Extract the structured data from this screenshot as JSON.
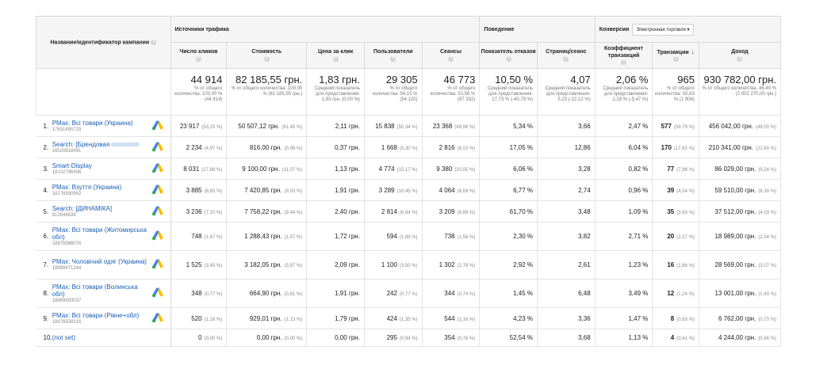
{
  "header": {
    "campaign_col": "Название/идентификатор кампании",
    "group_traffic": "Источники трафика",
    "group_behavior": "Поведение",
    "group_conversions": "Конверсии",
    "conversion_select": "Электронная торговля",
    "columns": [
      "Число кликов",
      "Стоимость",
      "Цена за клик",
      "Пользователи",
      "Сеансы",
      "Показатель отказов",
      "Страниц/сеанс",
      "Коэффициент транзакций",
      "Транзакции",
      "Доход"
    ]
  },
  "totals": [
    {
      "value": "44 914",
      "sub": "% от общего количества: 100,00 % (44 914)"
    },
    {
      "value": "82 185,55 грн.",
      "sub": "% от общего количества: 100,00 % (82 185,55 грн.)"
    },
    {
      "value": "1,83 грн.",
      "sub": "Средний показатель для представления: 1,83 грн. (0,00 %)"
    },
    {
      "value": "29 305",
      "sub": "% от общего количества: 54,15 % (54 120)"
    },
    {
      "value": "46 773",
      "sub": "% от общего количества: 53,56 % (87 332)"
    },
    {
      "value": "10,50 %",
      "sub": "Средний показатель для представления: 17,73 % (-40,79 %)"
    },
    {
      "value": "4,07",
      "sub": "Средний показатель для представления: 5,23 (-22,12 %)"
    },
    {
      "value": "2,06 %",
      "sub": "Средний показатель для представления: 2,18 % (-5,47 %)"
    },
    {
      "value": "965",
      "sub": "% от общего количества: 50,63 % (1 906)"
    },
    {
      "value": "930 782,00 грн.",
      "sub": "% от общего количества: 46,49 % (2 002 270,00 грн.)"
    }
  ],
  "rows": [
    {
      "num": "1.",
      "name": "PMax: Всі товари (Украина)",
      "id": "17631455729",
      "clicks": "23 917",
      "clicks_pct": "(53,25 %)",
      "cost": "50 507,12 грн.",
      "cost_pct": "(61,45 %)",
      "cpc": "2,11 грн.",
      "users": "15 838",
      "users_pct": "(50,34 %)",
      "sessions": "23 368",
      "sessions_pct": "(49,96 %)",
      "bounce": "5,34 %",
      "pages": "3,66",
      "conv_rate": "2,47 %",
      "trans": "577",
      "trans_pct": "(59,79 %)",
      "revenue": "456 042,00 грн.",
      "revenue_pct": "(49,00 %)"
    },
    {
      "num": "2.",
      "name": "Search: [Брендовая",
      "id": "16520818491",
      "clicks": "2 234",
      "clicks_pct": "(4,97 %)",
      "cost": "816,00 грн.",
      "cost_pct": "(0,99 %)",
      "cpc": "0,37 грн.",
      "users": "1 668",
      "users_pct": "(5,30 %)",
      "sessions": "2 816",
      "sessions_pct": "(6,02 %)",
      "bounce": "17,05 %",
      "pages": "12,86",
      "conv_rate": "6,04 %",
      "trans": "170",
      "trans_pct": "(17,62 %)",
      "revenue": "210 341,00 грн.",
      "revenue_pct": "(22,60 %)"
    },
    {
      "num": "3.",
      "name": "Smart-Display",
      "id": "18102796496",
      "clicks": "8 031",
      "clicks_pct": "(17,88 %)",
      "cost": "9 100,00 грн.",
      "cost_pct": "(11,07 %)",
      "cpc": "1,13 грн.",
      "users": "4 774",
      "users_pct": "(15,17 %)",
      "sessions": "9 380",
      "sessions_pct": "(20,05 %)",
      "bounce": "6,06 %",
      "pages": "3,28",
      "conv_rate": "0,82 %",
      "trans": "77",
      "trans_pct": "(7,98 %)",
      "revenue": "86 029,00 грн.",
      "revenue_pct": "(9,24 %)"
    },
    {
      "num": "4.",
      "name": "PMax: Взуття (Украина)",
      "id": "18176590962",
      "clicks": "3 885",
      "clicks_pct": "(8,65 %)",
      "cost": "7 420,85 грн.",
      "cost_pct": "(9,03 %)",
      "cpc": "1,91 грн.",
      "users": "3 289",
      "users_pct": "(10,45 %)",
      "sessions": "4 064",
      "sessions_pct": "(8,69 %)",
      "bounce": "6,77 %",
      "pages": "2,74",
      "conv_rate": "0,96 %",
      "trans": "39",
      "trans_pct": "(4,04 %)",
      "revenue": "59 510,00 грн.",
      "revenue_pct": "(6,39 %)"
    },
    {
      "num": "5.",
      "name": "Search: [ДИНАМІКА]",
      "id": "813944638",
      "clicks": "3 236",
      "clicks_pct": "(7,20 %)",
      "cost": "7 758,22 грн.",
      "cost_pct": "(9,44 %)",
      "cpc": "2,40 грн.",
      "users": "2 814",
      "users_pct": "(8,94 %)",
      "sessions": "3 209",
      "sessions_pct": "(6,86 %)",
      "bounce": "61,70 %",
      "pages": "3,48",
      "conv_rate": "1,09 %",
      "trans": "35",
      "trans_pct": "(3,63 %)",
      "revenue": "37 512,00 грн.",
      "revenue_pct": "(4,03 %)"
    },
    {
      "num": "6.",
      "name": "PMax: Всі товари (Житомирська обл)",
      "id": "18876988076",
      "clicks": "748",
      "clicks_pct": "(1,67 %)",
      "cost": "1 288,43 грн.",
      "cost_pct": "(1,57 %)",
      "cpc": "1,72 грн.",
      "users": "594",
      "users_pct": "(1,89 %)",
      "sessions": "738",
      "sessions_pct": "(1,58 %)",
      "bounce": "2,30 %",
      "pages": "3,82",
      "conv_rate": "2,71 %",
      "trans": "20",
      "trans_pct": "(2,07 %)",
      "revenue": "18 989,00 грн.",
      "revenue_pct": "(2,04 %)"
    },
    {
      "num": "7.",
      "name": "PMax: Чоловічий одяг (Украина)",
      "id": "18999471244",
      "clicks": "1 525",
      "clicks_pct": "(3,40 %)",
      "cost": "3 182,05 грн.",
      "cost_pct": "(3,87 %)",
      "cpc": "2,09 грн.",
      "users": "1 100",
      "users_pct": "(3,50 %)",
      "sessions": "1 302",
      "sessions_pct": "(2,78 %)",
      "bounce": "2,92 %",
      "pages": "2,61",
      "conv_rate": "1,23 %",
      "trans": "16",
      "trans_pct": "(1,66 %)",
      "revenue": "28 569,00 грн.",
      "revenue_pct": "(3,07 %)"
    },
    {
      "num": "8.",
      "name": "PMax: Всі товари (Волинська обл)",
      "id": "18869993037",
      "clicks": "348",
      "clicks_pct": "(0,77 %)",
      "cost": "664,90 грн.",
      "cost_pct": "(0,81 %)",
      "cpc": "1,91 грн.",
      "users": "242",
      "users_pct": "(0,77 %)",
      "sessions": "344",
      "sessions_pct": "(0,74 %)",
      "bounce": "1,45 %",
      "pages": "6,48",
      "conv_rate": "3,49 %",
      "trans": "12",
      "trans_pct": "(1,24 %)",
      "revenue": "13 001,00 грн.",
      "revenue_pct": "(1,40 %)"
    },
    {
      "num": "9.",
      "name": "PMax: Всі товари (Рівне+обл)",
      "id": "18876838316",
      "clicks": "520",
      "clicks_pct": "(1,16 %)",
      "cost": "929,01 грн.",
      "cost_pct": "(1,13 %)",
      "cpc": "1,79 грн.",
      "users": "424",
      "users_pct": "(1,35 %)",
      "sessions": "544",
      "sessions_pct": "(1,16 %)",
      "bounce": "4,23 %",
      "pages": "3,36",
      "conv_rate": "1,47 %",
      "trans": "8",
      "trans_pct": "(0,83 %)",
      "revenue": "6 762,00 грн.",
      "revenue_pct": "(0,73 %)"
    },
    {
      "num": "10.",
      "name": "(not set)",
      "id": "",
      "clicks": "0",
      "clicks_pct": "(0,00 %)",
      "cost": "0,00 грн.",
      "cost_pct": "(0,00 %)",
      "cpc": "0,00 грн.",
      "users": "295",
      "users_pct": "(0,94 %)",
      "sessions": "354",
      "sessions_pct": "(0,76 %)",
      "bounce": "52,54 %",
      "pages": "3,68",
      "conv_rate": "1,13 %",
      "trans": "4",
      "trans_pct": "(0,41 %)",
      "revenue": "4 244,00 грн.",
      "revenue_pct": "(0,46 %)"
    }
  ]
}
